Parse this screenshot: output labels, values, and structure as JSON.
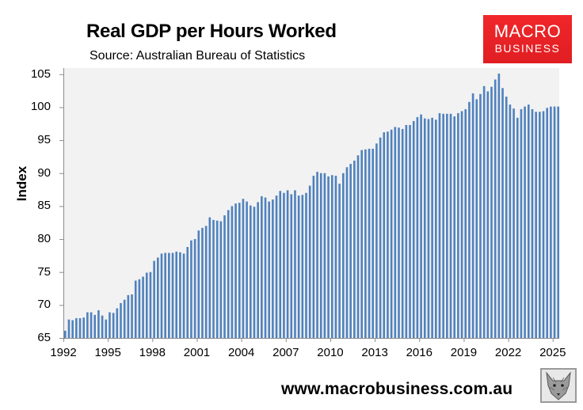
{
  "header": {
    "title": "Real GDP per Hours Worked",
    "subtitle": "Source: Australian Bureau of Statistics"
  },
  "logo": {
    "line1": "MACRO",
    "line2": "BUSINESS",
    "color": "#e8202a"
  },
  "footer": {
    "url": "www.macrobusiness.com.au",
    "fox_icon": "fox-head-icon"
  },
  "colors": {
    "bar": "#4f81bd",
    "plot_bg": "#f2f2f2",
    "axis": "#8c8c8c"
  },
  "chart_data": {
    "type": "bar",
    "title": "Real GDP per Hours Worked",
    "subtitle": "Source: Australian Bureau of Statistics",
    "xlabel": "",
    "ylabel": "Index",
    "ylim": [
      65,
      106
    ],
    "yticks": [
      65,
      70,
      75,
      80,
      85,
      90,
      95,
      100,
      105
    ],
    "xticks": [
      "1992",
      "1995",
      "1998",
      "2001",
      "2004",
      "2007",
      "2010",
      "2013",
      "2016",
      "2019",
      "2022",
      "2025"
    ],
    "grid": false,
    "legend": null,
    "frequency": "quarterly",
    "start": "1992 Q1",
    "end": "2025 Q2",
    "values": [
      66.1,
      67.8,
      67.7,
      68.0,
      68.0,
      68.1,
      68.9,
      68.9,
      68.5,
      69.2,
      68.4,
      67.8,
      68.9,
      68.8,
      69.5,
      70.3,
      70.8,
      71.5,
      71.6,
      73.7,
      73.9,
      74.3,
      74.9,
      75.0,
      76.7,
      77.2,
      77.8,
      77.9,
      77.9,
      77.9,
      78.1,
      78.0,
      77.8,
      78.8,
      79.8,
      80.0,
      81.3,
      81.7,
      82.0,
      83.3,
      82.9,
      82.8,
      82.7,
      83.6,
      84.4,
      85.0,
      85.4,
      85.5,
      86.1,
      85.7,
      85.1,
      84.9,
      85.6,
      86.5,
      86.3,
      85.7,
      86.0,
      86.6,
      87.3,
      87.0,
      87.4,
      86.8,
      87.4,
      86.6,
      86.7,
      87.0,
      88.1,
      89.6,
      90.2,
      90.0,
      90.0,
      89.5,
      89.7,
      89.6,
      88.4,
      90.0,
      90.9,
      91.4,
      91.9,
      92.7,
      93.5,
      93.6,
      93.7,
      93.7,
      94.5,
      95.4,
      96.2,
      96.3,
      96.6,
      97.0,
      96.9,
      96.7,
      97.3,
      97.3,
      97.9,
      98.5,
      98.9,
      98.3,
      98.2,
      98.4,
      98.1,
      99.1,
      99.0,
      99.0,
      99.0,
      98.6,
      99.1,
      99.4,
      99.7,
      100.8,
      102.1,
      101.2,
      102.0,
      103.2,
      102.4,
      103.1,
      104.2,
      105.1,
      102.9,
      101.6,
      100.4,
      99.8,
      98.4,
      99.7,
      100.1,
      100.4,
      99.7,
      99.3,
      99.3,
      99.4,
      99.9,
      100.1,
      100.1,
      100.1
    ]
  }
}
